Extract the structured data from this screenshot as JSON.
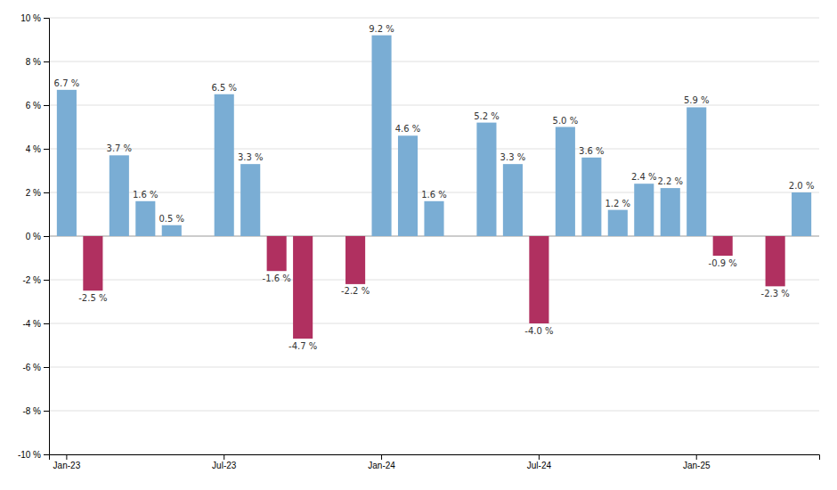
{
  "chart_data": {
    "type": "bar",
    "categories": [
      "Jan-23",
      null,
      null,
      null,
      null,
      null,
      "Jul-23",
      null,
      null,
      null,
      null,
      null,
      "Jan-24",
      null,
      null,
      null,
      null,
      null,
      "Jul-24",
      null,
      null,
      null,
      null,
      null,
      "Jan-25",
      null,
      null,
      null,
      null
    ],
    "values": [
      6.7,
      -2.5,
      3.7,
      1.6,
      0.5,
      null,
      6.5,
      3.3,
      -1.6,
      -4.7,
      null,
      -2.2,
      9.2,
      4.6,
      1.6,
      null,
      5.2,
      3.3,
      -4.0,
      5.0,
      3.6,
      1.2,
      2.4,
      2.2,
      5.9,
      -0.9,
      null,
      -2.3,
      2.0
    ],
    "value_labels": [
      "6.7 %",
      "-2.5 %",
      "3.7 %",
      "1.6 %",
      "0.5 %",
      null,
      "6.5 %",
      "3.3 %",
      "-1.6 %",
      "-4.7 %",
      null,
      "-2.2 %",
      "9.2 %",
      "4.6 %",
      "1.6 %",
      null,
      "5.2 %",
      "3.3 %",
      "-4.0 %",
      "5.0 %",
      "3.6 %",
      "1.2 %",
      "2.4 %",
      "2.2 %",
      "5.9 %",
      "-0.9 %",
      null,
      "-2.3 %",
      "2.0 %"
    ],
    "colors": [
      "#7aadd4",
      "#b03060",
      "#7aadd4",
      "#7aadd4",
      "#7aadd4",
      null,
      "#7aadd4",
      "#7aadd4",
      "#b03060",
      "#b03060",
      null,
      "#b03060",
      "#7aadd4",
      "#7aadd4",
      "#7aadd4",
      null,
      "#7aadd4",
      "#7aadd4",
      "#b03060",
      "#7aadd4",
      "#7aadd4",
      "#7aadd4",
      "#7aadd4",
      "#7aadd4",
      "#7aadd4",
      "#b03060",
      null,
      "#b03060",
      "#7aadd4"
    ],
    "data_labels": true,
    "ylim": [
      -10,
      10
    ],
    "yticks": [
      {
        "value": -10,
        "label": "-10 %"
      },
      {
        "value": -8,
        "label": "-8 %"
      },
      {
        "value": -6,
        "label": "-6 %"
      },
      {
        "value": -4,
        "label": "-4 %"
      },
      {
        "value": -2,
        "label": "-2 %"
      },
      {
        "value": 0,
        "label": "0 %"
      },
      {
        "value": 2,
        "label": "2 %"
      },
      {
        "value": 4,
        "label": "4 %"
      },
      {
        "value": 6,
        "label": "6 %"
      },
      {
        "value": 8,
        "label": "8 %"
      },
      {
        "value": 10,
        "label": "10 %"
      }
    ],
    "grid": true
  }
}
